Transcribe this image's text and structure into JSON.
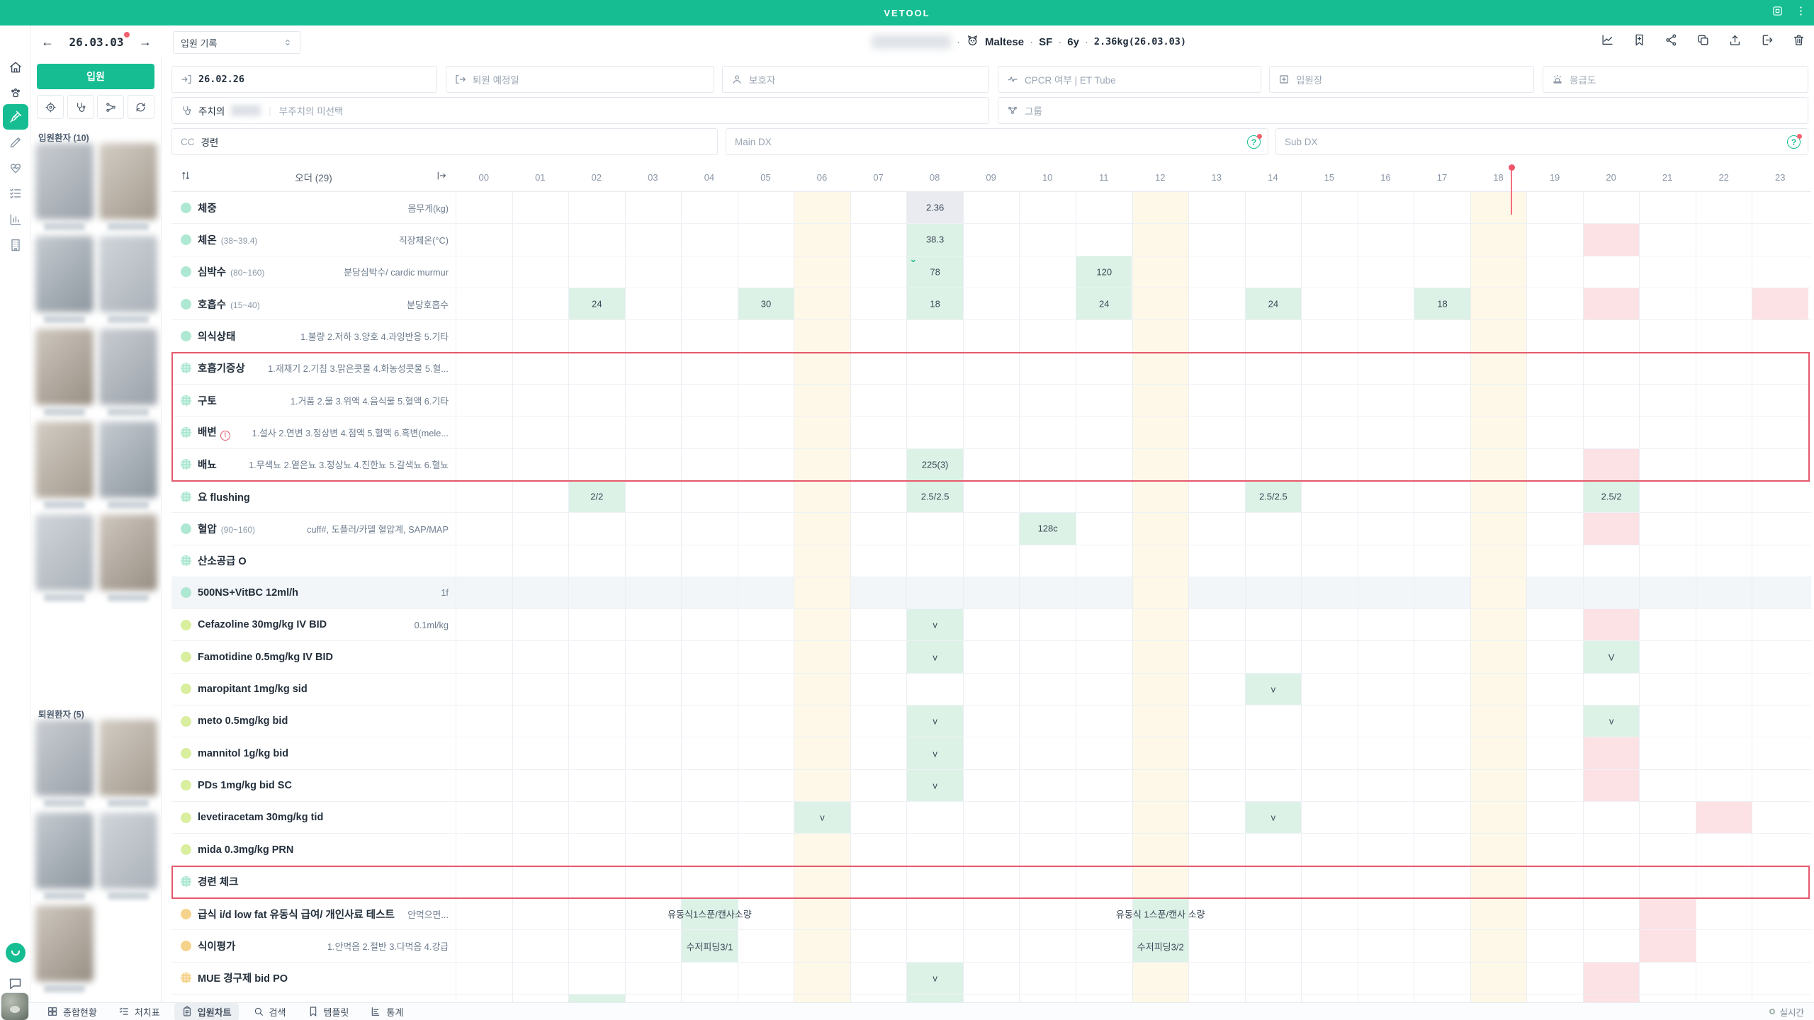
{
  "app": {
    "title": "VETOOL"
  },
  "header": {
    "date": "26.03.03",
    "record_select": "입원 기록",
    "patient": {
      "breed": "Maltese",
      "sex": "SF",
      "age": "6y",
      "weight": "2.36kg(26.03.03)"
    },
    "action_icons": [
      "trend-icon",
      "bookmark-add-icon",
      "share-icon",
      "copy-icon",
      "upload-icon",
      "logout-icon",
      "trash-icon"
    ]
  },
  "sidebar": {
    "icons": [
      "home-icon",
      "paw-icon",
      "syringe-icon",
      "pencil-icon",
      "heart-pulse-icon",
      "tasks-icon",
      "chart-icon",
      "building-icon"
    ],
    "active_index": 2
  },
  "left_panel": {
    "admit_button": "입원",
    "quick_icons": [
      "target-icon",
      "stethoscope-icon",
      "branch-icon",
      "refresh-icon"
    ],
    "inpatients_label": "입원환자 (10)",
    "inpatients_count": 10,
    "discharged_label": "퇴원환자 (5)",
    "discharged_count": 5
  },
  "form": {
    "admit_date": "26.02.26",
    "discharge_placeholder": "퇴원 예정일",
    "guardian_placeholder": "보호자",
    "cpcr_placeholder": "CPCR 여부 | ET Tube",
    "ward_placeholder": "입원장",
    "emergency_placeholder": "응급도",
    "doctor_label": "주치의",
    "subdoctor_placeholder": "부주치의 미선택",
    "group_placeholder": "그룹",
    "cc_label": "CC",
    "cc_value": "경련",
    "main_dx_placeholder": "Main DX",
    "sub_dx_placeholder": "Sub DX"
  },
  "grid": {
    "order_header": "오더 (29)",
    "hours": [
      "00",
      "01",
      "02",
      "03",
      "04",
      "05",
      "06",
      "07",
      "08",
      "09",
      "10",
      "11",
      "12",
      "13",
      "14",
      "15",
      "16",
      "17",
      "18",
      "19",
      "20",
      "21",
      "22",
      "23"
    ],
    "cream_columns": [
      6,
      12,
      18
    ],
    "rows": [
      {
        "name": "체중",
        "note": "몸무게(kg)",
        "dot": "mint",
        "cells": [
          {
            "c": 8,
            "t": "2.36",
            "bg": "grey"
          }
        ]
      },
      {
        "name": "체온",
        "range": "(38~39.4)",
        "note": "직장체온(°C)",
        "dot": "mint",
        "cells": [
          {
            "c": 8,
            "t": "38.3",
            "bg": "mint"
          },
          {
            "c": 20,
            "bg": "pink"
          }
        ]
      },
      {
        "name": "심박수",
        "range": "(80~160)",
        "note": "분당심박수/ cardic murmur",
        "dot": "mint",
        "cells": [
          {
            "c": 8,
            "t": "78",
            "bg": "mint",
            "check": true
          },
          {
            "c": 11,
            "t": "120",
            "bg": "mint"
          }
        ]
      },
      {
        "name": "호흡수",
        "range": "(15~40)",
        "note": "분당호흡수",
        "dot": "mint",
        "cells": [
          {
            "c": 2,
            "t": "24",
            "bg": "mint"
          },
          {
            "c": 5,
            "t": "30",
            "bg": "mint"
          },
          {
            "c": 8,
            "t": "18",
            "bg": "mint"
          },
          {
            "c": 11,
            "t": "24",
            "bg": "mint"
          },
          {
            "c": 14,
            "t": "24",
            "bg": "mint"
          },
          {
            "c": 17,
            "t": "18",
            "bg": "mint"
          },
          {
            "c": 20,
            "bg": "pink"
          },
          {
            "c": 23,
            "bg": "pink"
          }
        ]
      },
      {
        "name": "의식상태",
        "note": "1.불량 2.저하 3.양호 4.과잉반응 5.기타",
        "dot": "mint",
        "cells": []
      },
      {
        "name": "호흡기증상",
        "note": "1.재채기 2.기침 3.맑은콧물 4.화농성콧물 5.혈...",
        "dot": "mint-dotted",
        "cells": []
      },
      {
        "name": "구토",
        "note": "1.거품 2.물 3.위액 4.음식물 5.혈액 6.기타",
        "dot": "mint-dotted",
        "cells": []
      },
      {
        "name": "배변",
        "warn": true,
        "note": "1.설사 2.연변 3.정상변 4.점액 5.혈액 6.흑변(mele...",
        "dot": "mint-dotted",
        "cells": []
      },
      {
        "name": "배뇨",
        "note": "1.무색뇨 2.옅은뇨 3.정상뇨 4.진한뇨 5.갈색뇨 6.혈뇨",
        "dot": "mint-dotted",
        "cells": [
          {
            "c": 8,
            "t": "225(3)",
            "bg": "mint"
          },
          {
            "c": 20,
            "bg": "pink"
          }
        ]
      },
      {
        "name": "요 flushing",
        "dot": "mint-dotted",
        "cells": [
          {
            "c": 2,
            "t": "2/2",
            "bg": "mint"
          },
          {
            "c": 8,
            "t": "2.5/2.5",
            "bg": "mint"
          },
          {
            "c": 14,
            "t": "2.5/2.5",
            "bg": "mint"
          },
          {
            "c": 20,
            "t": "2.5/2",
            "bg": "mint"
          }
        ]
      },
      {
        "name": "혈압",
        "range": "(90~160)",
        "note": "cuff#, 도플러/카델 혈압계, SAP/MAP",
        "dot": "mint",
        "cells": [
          {
            "c": 10,
            "t": "128c",
            "bg": "mint"
          },
          {
            "c": 20,
            "bg": "pink"
          }
        ]
      },
      {
        "name": "산소공급 O",
        "dot": "mint-dotted",
        "cells": []
      },
      {
        "name": "500NS+VitBC 12ml/h",
        "note": "1f",
        "dot": "mint",
        "row_highlight": true,
        "cells": []
      },
      {
        "name": "Cefazoline 30mg/kg IV BID",
        "note": "0.1ml/kg",
        "dot": "lime",
        "cells": [
          {
            "c": 8,
            "t": "v",
            "bg": "mint"
          },
          {
            "c": 20,
            "bg": "pink"
          }
        ]
      },
      {
        "name": "Famotidine 0.5mg/kg IV BID",
        "dot": "lime",
        "cells": [
          {
            "c": 8,
            "t": "v",
            "bg": "mint"
          },
          {
            "c": 20,
            "t": "V",
            "bg": "mint"
          }
        ]
      },
      {
        "name": "maropitant 1mg/kg sid",
        "dot": "lime",
        "cells": [
          {
            "c": 14,
            "t": "v",
            "bg": "mint"
          }
        ]
      },
      {
        "name": "meto 0.5mg/kg bid",
        "dot": "lime",
        "cells": [
          {
            "c": 8,
            "t": "v",
            "bg": "mint"
          },
          {
            "c": 20,
            "t": "v",
            "bg": "mint"
          }
        ]
      },
      {
        "name": "mannitol 1g/kg bid",
        "dot": "lime",
        "cells": [
          {
            "c": 8,
            "t": "v",
            "bg": "mint"
          },
          {
            "c": 20,
            "bg": "pink"
          }
        ]
      },
      {
        "name": "PDs 1mg/kg bid SC",
        "dot": "lime",
        "cells": [
          {
            "c": 8,
            "t": "v",
            "bg": "mint"
          },
          {
            "c": 20,
            "bg": "pink"
          }
        ]
      },
      {
        "name": "levetiracetam 30mg/kg tid",
        "dot": "lime",
        "cells": [
          {
            "c": 6,
            "t": "v",
            "bg": "mint"
          },
          {
            "c": 14,
            "t": "v",
            "bg": "mint"
          },
          {
            "c": 22,
            "bg": "pink"
          }
        ]
      },
      {
        "name": "mida 0.3mg/kg PRN",
        "dot": "lime",
        "cells": []
      },
      {
        "name": "경련 체크",
        "dot": "mint-dotted",
        "red_box": true,
        "cells": []
      },
      {
        "name": "급식 i/d low fat 유동식 급여/ 개인사료 테스트",
        "note": "안먹으면...",
        "dot": "amber",
        "cells": [
          {
            "c": 4,
            "t": "유동식1스푼/캔사소량",
            "bg": "mint"
          },
          {
            "c": 12,
            "t": "유동식 1스푼/캔사 소량",
            "bg": "mint"
          },
          {
            "c": 21,
            "bg": "pink"
          }
        ]
      },
      {
        "name": "식이평가",
        "note": "1.안먹음 2.절반 3.다먹음 4.강급",
        "dot": "amber",
        "cells": [
          {
            "c": 4,
            "t": "수저피딩3/1",
            "bg": "mint"
          },
          {
            "c": 12,
            "t": "수저피딩3/2",
            "bg": "mint"
          },
          {
            "c": 21,
            "bg": "pink"
          }
        ]
      },
      {
        "name": "MUE 경구제 bid PO",
        "dot": "amber-dotted",
        "cells": [
          {
            "c": 8,
            "t": "v",
            "bg": "mint"
          },
          {
            "c": 20,
            "bg": "pink"
          }
        ]
      },
      {
        "name": "",
        "dot": "none",
        "partial": true,
        "cells": [
          {
            "c": 2,
            "bg": "mint"
          },
          {
            "c": 8,
            "bg": "mint"
          },
          {
            "c": 20,
            "bg": "pink"
          }
        ]
      }
    ],
    "red_group_rows": [
      5,
      8
    ]
  },
  "footer": {
    "tabs": [
      {
        "label": "종합현황",
        "icon": "grid-icon",
        "active": false
      },
      {
        "label": "처치표",
        "icon": "checklist-icon",
        "active": false
      },
      {
        "label": "입원차트",
        "icon": "clipboard-icon",
        "active": true
      },
      {
        "label": "검색",
        "icon": "search-icon",
        "active": false
      },
      {
        "label": "템플릿",
        "icon": "bookmark-icon",
        "active": false
      },
      {
        "label": "통계",
        "icon": "stats-icon",
        "active": false
      }
    ],
    "live_label": "실시간"
  },
  "colors": {
    "accent_teal": "#16bd92",
    "mint_cell": "#ddf2e7",
    "pink_cell": "#fce1e5",
    "cream_column": "#fdf8e8",
    "alert_red": "#e55a6d"
  }
}
